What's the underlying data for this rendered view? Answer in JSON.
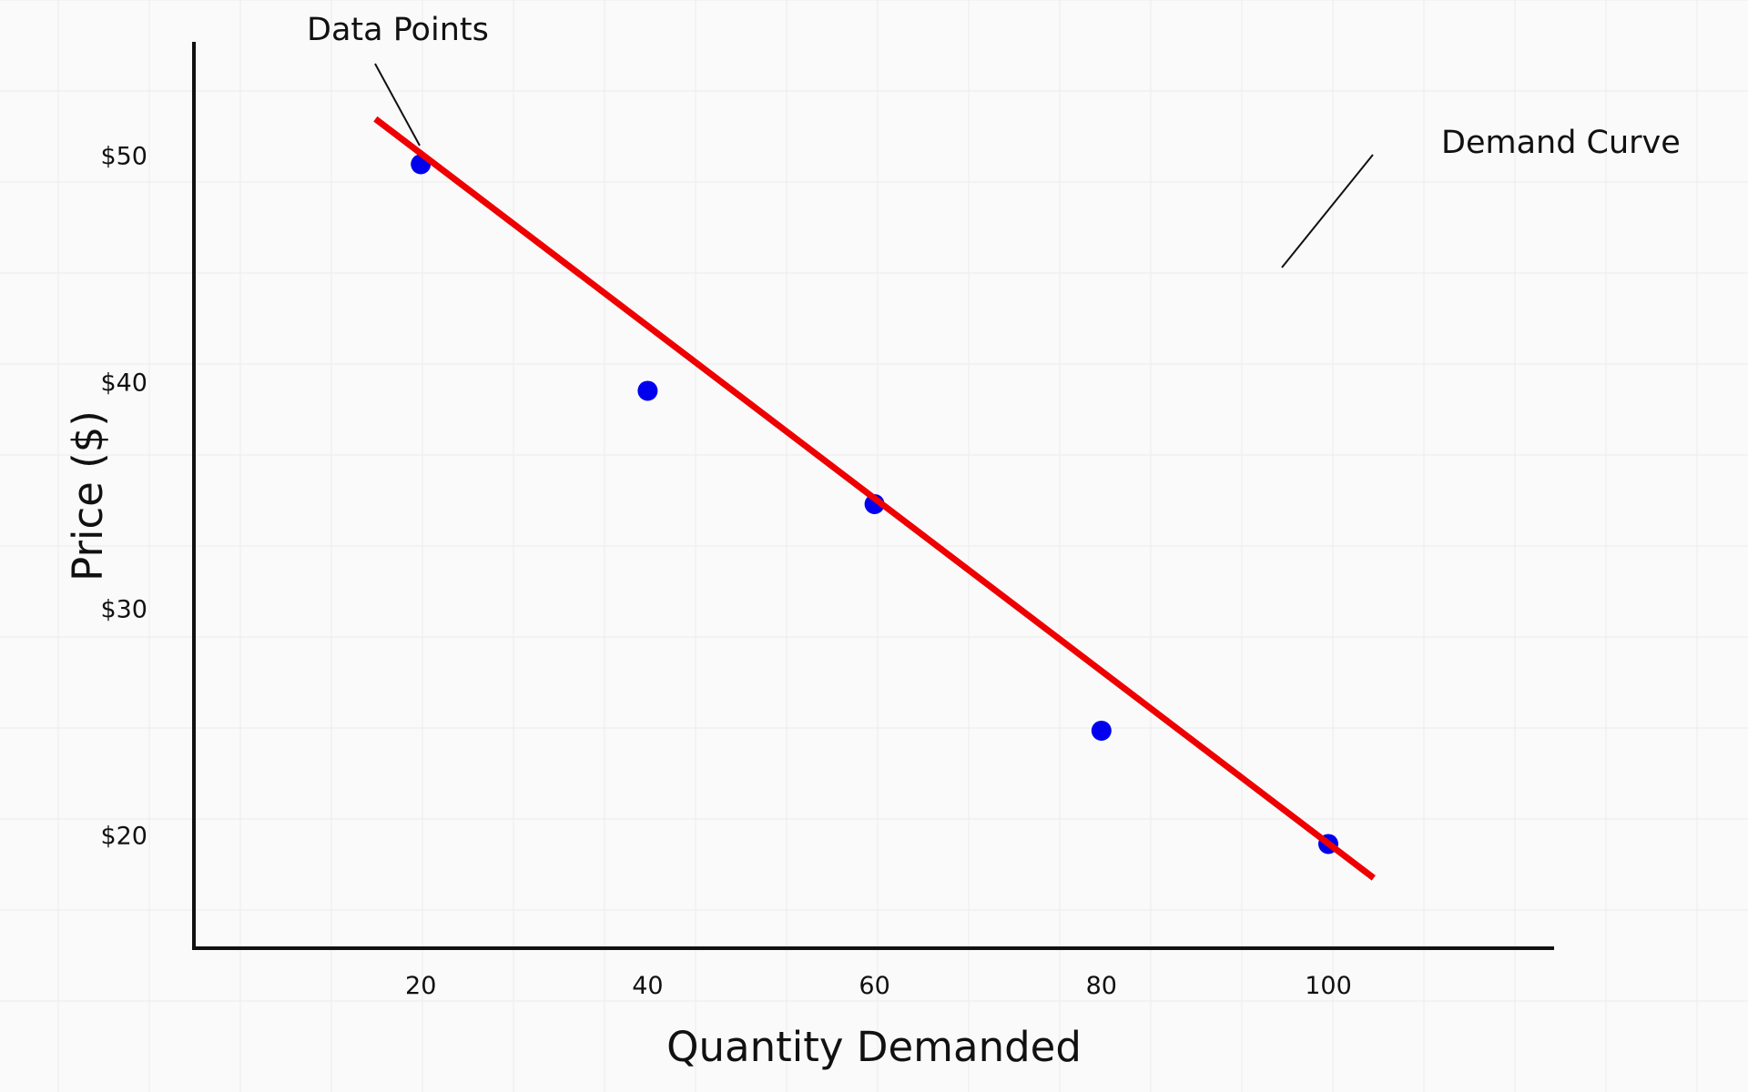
{
  "chart_data": {
    "type": "scatter",
    "title": "",
    "xlabel": "Quantity Demanded",
    "ylabel": "Price ($)",
    "xlim": [
      0,
      120
    ],
    "ylim": [
      15,
      55
    ],
    "x_ticks": [
      20,
      40,
      60,
      80,
      100
    ],
    "y_ticks": [
      20,
      30,
      40,
      50
    ],
    "y_tick_labels": [
      "$20",
      "$30",
      "$40",
      "$50"
    ],
    "grid": true,
    "series": [
      {
        "type": "scatter",
        "color": "#0000ee",
        "x": [
          20,
          40,
          60,
          80,
          100
        ],
        "y": [
          49.6,
          39.6,
          34.6,
          24.6,
          19.6
        ]
      },
      {
        "type": "line",
        "color": "#ee0000",
        "x": [
          16,
          104
        ],
        "y": [
          51.6,
          18.1
        ]
      }
    ],
    "annotations": [
      {
        "text": "Data Points",
        "target": [
          20,
          49.6
        ]
      },
      {
        "text": "Demand Curve"
      }
    ]
  }
}
